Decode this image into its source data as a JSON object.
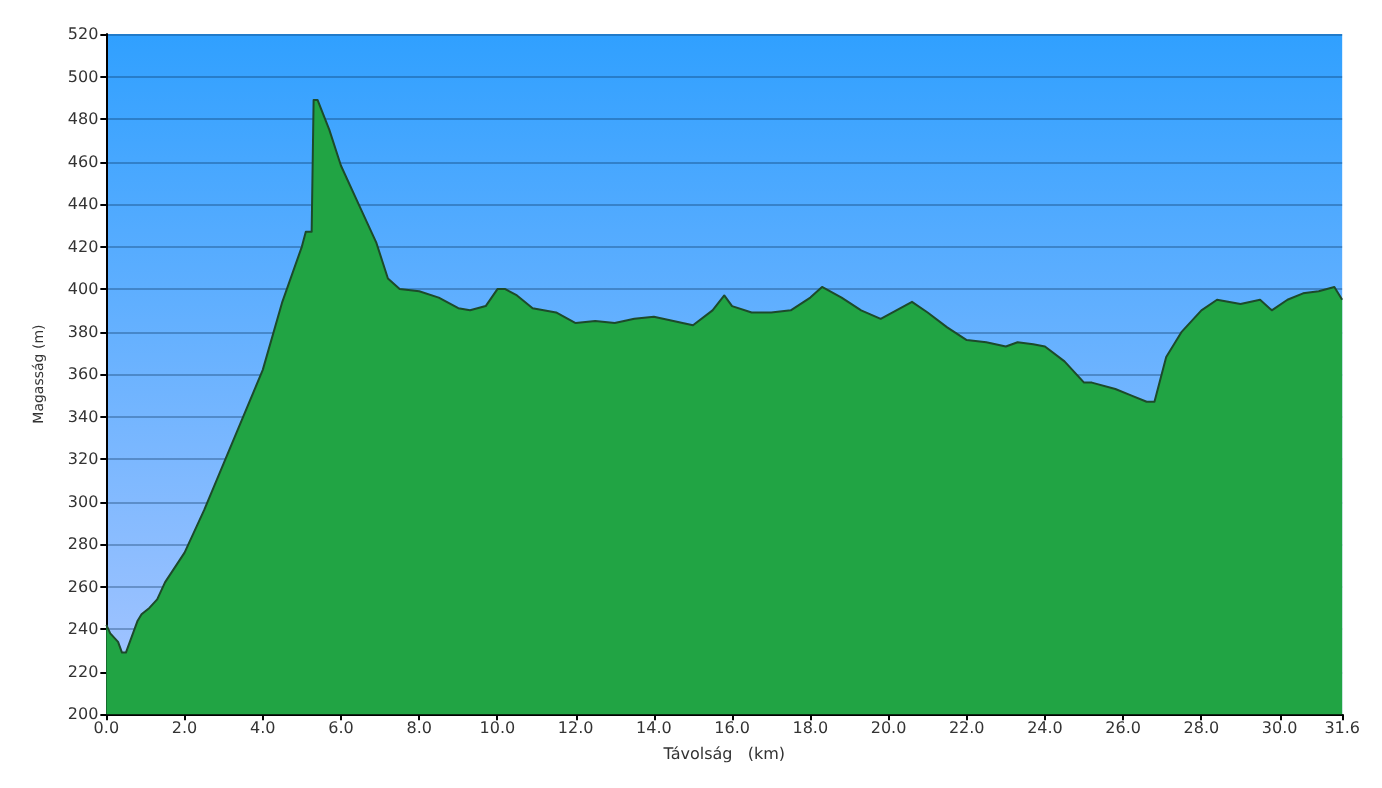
{
  "chart_data": {
    "type": "area",
    "xlabel": "Távolság   (km)",
    "ylabel": "Magasság (m)",
    "x": [
      0,
      0.1,
      0.3,
      0.4,
      0.5,
      0.8,
      0.9,
      1.1,
      1.3,
      1.5,
      2.0,
      2.5,
      3.0,
      3.5,
      4.0,
      4.5,
      5.0,
      5.1,
      5.25,
      5.3,
      5.4,
      5.7,
      6.0,
      6.5,
      6.9,
      7.2,
      7.5,
      8.0,
      8.5,
      9.0,
      9.3,
      9.7,
      10.0,
      10.2,
      10.5,
      10.9,
      11.5,
      12.0,
      12.5,
      13.0,
      13.5,
      14.0,
      14.5,
      15.0,
      15.5,
      15.8,
      16.0,
      16.5,
      17.0,
      17.5,
      18.0,
      18.3,
      18.8,
      19.3,
      19.8,
      20.2,
      20.6,
      21.0,
      21.5,
      22.0,
      22.5,
      23.0,
      23.3,
      23.7,
      24.0,
      24.5,
      25.0,
      25.2,
      25.8,
      26.2,
      26.6,
      26.8,
      27.1,
      27.5,
      28.0,
      28.4,
      29.0,
      29.5,
      29.8,
      30.2,
      30.6,
      31.0,
      31.4,
      31.6
    ],
    "series": [
      {
        "color": "#21a444",
        "values": [
          242,
          238,
          234,
          229,
          229,
          244,
          247,
          250,
          254,
          262,
          276,
          296,
          318,
          340,
          362,
          394,
          420,
          427,
          427,
          489,
          489,
          475,
          458,
          438,
          422,
          405,
          400,
          399,
          396,
          391,
          390,
          392,
          400,
          400,
          397,
          391,
          389,
          384,
          385,
          384,
          386,
          387,
          385,
          383,
          390,
          397,
          392,
          389,
          389,
          390,
          396,
          401,
          396,
          390,
          386,
          390,
          394,
          389,
          382,
          376,
          375,
          373,
          375,
          374,
          373,
          366,
          356,
          356,
          353,
          350,
          347,
          347,
          368,
          380,
          390,
          395,
          393,
          395,
          390,
          395,
          398,
          399,
          401,
          395
        ]
      }
    ],
    "xlim": [
      0,
      31.6
    ],
    "xticks": [
      {
        "value": 0,
        "label": "0.0"
      },
      {
        "value": 2,
        "label": "2.0"
      },
      {
        "value": 4,
        "label": "4.0"
      },
      {
        "value": 6,
        "label": "6.0"
      },
      {
        "value": 8,
        "label": "8.0"
      },
      {
        "value": 10,
        "label": "10.0"
      },
      {
        "value": 12,
        "label": "12.0"
      },
      {
        "value": 14,
        "label": "14.0"
      },
      {
        "value": 16,
        "label": "16.0"
      },
      {
        "value": 18,
        "label": "18.0"
      },
      {
        "value": 20,
        "label": "20.0"
      },
      {
        "value": 22,
        "label": "22.0"
      },
      {
        "value": 24,
        "label": "24.0"
      },
      {
        "value": 26,
        "label": "26.0"
      },
      {
        "value": 28,
        "label": "28.0"
      },
      {
        "value": 30,
        "label": "30.0"
      },
      {
        "value": 31.6,
        "label": "31.6"
      }
    ],
    "ylim": [
      200,
      520
    ],
    "yticks": [
      200,
      220,
      240,
      260,
      280,
      300,
      320,
      340,
      360,
      380,
      400,
      420,
      440,
      460,
      480,
      500,
      520
    ],
    "grid": "y",
    "marker": "none",
    "line_style": "solid"
  }
}
